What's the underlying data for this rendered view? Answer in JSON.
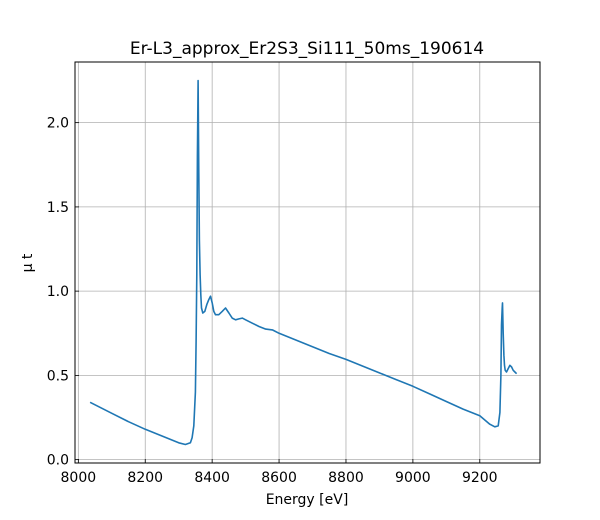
{
  "chart_data": {
    "type": "line",
    "title": "Er-L3_approx_Er2S3_Si111_50ms_190614",
    "xlabel": "Energy [eV]",
    "ylabel": "μ t",
    "xlim": [
      7990,
      9380
    ],
    "ylim": [
      -0.02,
      2.36
    ],
    "grid": true,
    "xticks": [
      8000,
      8200,
      8400,
      8600,
      8800,
      9000,
      9200
    ],
    "xtick_labels": [
      "8000",
      "8200",
      "8400",
      "8600",
      "8800",
      "9000",
      "9200"
    ],
    "yticks": [
      0.0,
      0.5,
      1.0,
      1.5,
      2.0
    ],
    "ytick_labels": [
      "0.0",
      "0.5",
      "1.0",
      "1.5",
      "2.0"
    ],
    "series": [
      {
        "color": "#1f77b4",
        "x": [
          8035,
          8100,
          8150,
          8200,
          8250,
          8300,
          8320,
          8335,
          8340,
          8345,
          8350,
          8352,
          8354,
          8356,
          8358,
          8360,
          8362,
          8364,
          8366,
          8368,
          8372,
          8378,
          8384,
          8390,
          8395,
          8400,
          8405,
          8410,
          8420,
          8430,
          8440,
          8450,
          8460,
          8470,
          8480,
          8490,
          8500,
          8520,
          8540,
          8560,
          8580,
          8600,
          8650,
          8700,
          8750,
          8800,
          8850,
          8900,
          8950,
          9000,
          9050,
          9100,
          9150,
          9200,
          9230,
          9245,
          9255,
          9260,
          9263,
          9265,
          9267,
          9268,
          9270,
          9272,
          9274,
          9276,
          9280,
          9285,
          9290,
          9295,
          9300,
          9305,
          9310
        ],
        "y": [
          0.34,
          0.275,
          0.225,
          0.18,
          0.14,
          0.1,
          0.09,
          0.1,
          0.13,
          0.2,
          0.4,
          0.7,
          1.1,
          1.8,
          2.25,
          1.7,
          1.3,
          1.1,
          0.98,
          0.9,
          0.87,
          0.88,
          0.92,
          0.95,
          0.97,
          0.93,
          0.88,
          0.86,
          0.86,
          0.88,
          0.9,
          0.87,
          0.84,
          0.83,
          0.835,
          0.84,
          0.83,
          0.81,
          0.79,
          0.775,
          0.77,
          0.75,
          0.71,
          0.67,
          0.63,
          0.595,
          0.555,
          0.515,
          0.475,
          0.435,
          0.39,
          0.345,
          0.3,
          0.26,
          0.21,
          0.195,
          0.2,
          0.28,
          0.5,
          0.8,
          0.9,
          0.93,
          0.75,
          0.62,
          0.56,
          0.53,
          0.52,
          0.54,
          0.56,
          0.55,
          0.53,
          0.52,
          0.51
        ]
      }
    ]
  }
}
